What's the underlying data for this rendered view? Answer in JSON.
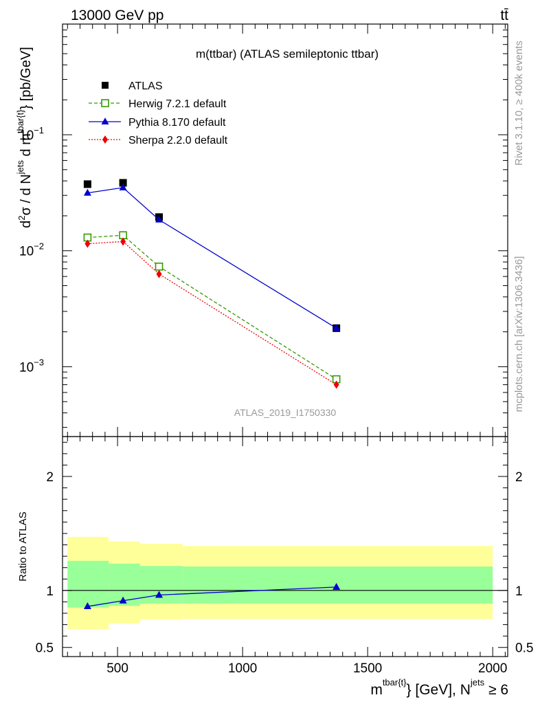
{
  "header": {
    "left": "13000 GeV pp",
    "right": "tt̄"
  },
  "side_labels": {
    "rivet": "Rivet 3.1.10, ≥ 400k events",
    "mcplots": "mcplots.cern.ch [arXiv:1306.3436]"
  },
  "colors": {
    "atlas": "#000000",
    "herwig": "#339900",
    "pythia": "#0000cc",
    "sherpa": "#ee0000",
    "band_inner": "#99ff99",
    "band_outer": "#ffff99"
  },
  "chart_data": [
    {
      "type": "scatter",
      "title": "m(ttbar) (ATLAS semileptonic ttbar)",
      "watermark": "ATLAS_2019_I1750330",
      "ylabel": "d²σ / d N^jets d m^tbar{t} [pb/GeV]",
      "ylabel_parts": {
        "a": "d",
        "a_sup": "2",
        "b": "σ / d N",
        "b_sup": "jets",
        "c": " d m",
        "c_sup": "tbar{t}",
        "d": "} [pb/GeV]"
      },
      "yscale": "log",
      "ylim": [
        0.00025,
        0.9
      ],
      "xlim": [
        280,
        2060
      ],
      "yticks": [
        {
          "value": 0.1,
          "base": "10",
          "exp": "−1"
        },
        {
          "value": 0.01,
          "base": "10",
          "exp": "−2"
        },
        {
          "value": 0.001,
          "base": "10",
          "exp": "−3"
        }
      ],
      "legend_position": "top-left",
      "series": [
        {
          "name": "ATLAS",
          "marker": "square",
          "x": [
            380,
            522,
            666,
            1375
          ],
          "y": [
            0.0375,
            0.0385,
            0.0195,
            0.00215
          ],
          "xerr_lo": [
            300,
            465,
            590,
            760
          ],
          "xerr_hi": [
            465,
            590,
            760,
            2000
          ]
        },
        {
          "name": "Herwig 7.2.1 default",
          "marker": "open-square",
          "line": "dashed",
          "x": [
            380,
            522,
            666,
            1375
          ],
          "y": [
            0.013,
            0.0136,
            0.0073,
            0.00078
          ]
        },
        {
          "name": "Pythia 8.170 default",
          "marker": "triangle",
          "line": "solid",
          "x": [
            380,
            522,
            666,
            1375
          ],
          "y": [
            0.0315,
            0.035,
            0.0185,
            0.00215
          ]
        },
        {
          "name": "Sherpa 2.2.0 default",
          "marker": "diamond",
          "line": "dotted",
          "x": [
            380,
            522,
            666,
            1375
          ],
          "y": [
            0.0115,
            0.012,
            0.0063,
            0.0007
          ]
        }
      ]
    },
    {
      "type": "line",
      "ylabel": "Ratio to ATLAS",
      "xlabel": "m^tbar{t}} [GeV], N^jets ≥ 6",
      "xlabel_parts": {
        "a": "m",
        "a_sup": "tbar{t}",
        "b": "} [GeV], N",
        "b_sup": "jets",
        "c": " ≥ 6"
      },
      "ylim": [
        0.42,
        2.35
      ],
      "xlim": [
        280,
        2060
      ],
      "xticks": [
        500,
        1000,
        1500,
        2000
      ],
      "yticks": [
        0.5,
        1,
        2
      ],
      "bands": [
        {
          "x0": 300,
          "x1": 465,
          "inner": [
            0.85,
            1.26
          ],
          "outer": [
            0.66,
            1.47
          ]
        },
        {
          "x0": 465,
          "x1": 590,
          "inner": [
            0.865,
            1.235
          ],
          "outer": [
            0.71,
            1.43
          ]
        },
        {
          "x0": 590,
          "x1": 760,
          "inner": [
            0.885,
            1.215
          ],
          "outer": [
            0.745,
            1.41
          ]
        },
        {
          "x0": 760,
          "x1": 2000,
          "inner": [
            0.885,
            1.21
          ],
          "outer": [
            0.75,
            1.39
          ]
        }
      ],
      "series": [
        {
          "name": "Pythia 8.170 default",
          "x": [
            380,
            522,
            666,
            1375
          ],
          "y": [
            0.86,
            0.91,
            0.96,
            1.03
          ]
        }
      ]
    }
  ]
}
